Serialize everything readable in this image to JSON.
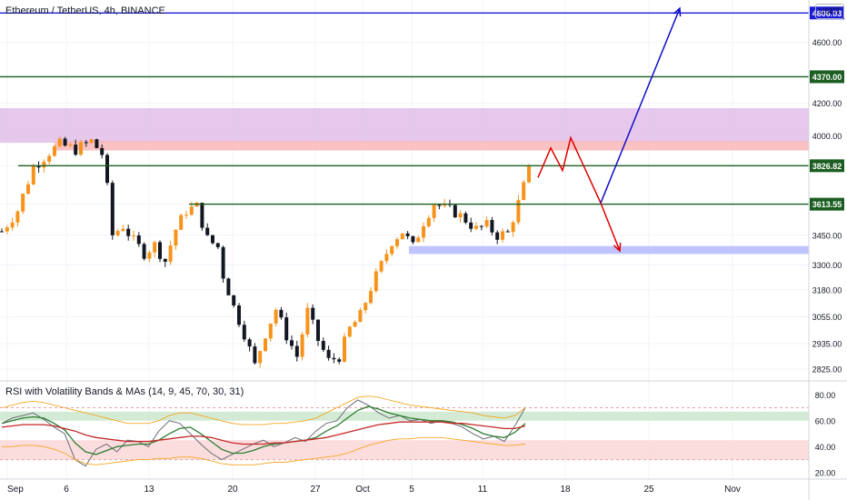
{
  "header": {
    "title": "Ethereum / TetherUS, 4h, BINANCE",
    "currency": "USDT"
  },
  "colors": {
    "up": "#f7931a",
    "down": "#131722",
    "green_line": "#1b5e20",
    "blue_line": "#1b1bd9",
    "purple_zone": "#e1bee7",
    "red_zone": "#f9b7b7",
    "blue_zone": "#b6b9ff",
    "projection_red": "#e00000",
    "projection_blue": "#1010c8"
  },
  "chart_data": [
    {
      "type": "candlestick",
      "symbol": "ETHUSDT",
      "interval": "4h",
      "exchange": "BINANCE",
      "y_axis": {
        "scale": "log",
        "range": [
          2780,
          4900
        ],
        "ticks": [
          4806.03,
          4600.0,
          4370.0,
          4200.0,
          4000.0,
          3826.82,
          3613.55,
          3450.0,
          3300.0,
          3180.0,
          3055.0,
          2935.0,
          2825.0
        ]
      },
      "x_axis": {
        "tick_labels": [
          "Sep",
          "6",
          "13",
          "20",
          "27",
          "Oct",
          "5",
          "11",
          "18",
          "25",
          "Nov"
        ]
      },
      "horizontal_levels": [
        {
          "price": 4806.03,
          "label": "4806.03",
          "color": "blue"
        },
        {
          "price": 4370.0,
          "label": "4370.00",
          "color": "green"
        },
        {
          "price": 3826.82,
          "label": "3826.82",
          "color": "green"
        },
        {
          "price": 3613.55,
          "label": "3613.55",
          "color": "green"
        }
      ],
      "zones": [
        {
          "name": "supply-purple",
          "low": 3960,
          "high": 4170
        },
        {
          "name": "supply-red",
          "low": 3915,
          "high": 3970
        },
        {
          "name": "demand-blue",
          "low": 3355,
          "high": 3395
        }
      ],
      "projections": [
        {
          "name": "bearish",
          "points": [
            [
              3760,
              0
            ],
            [
              3930,
              1
            ],
            [
              3800,
              2
            ],
            [
              3990,
              3
            ],
            [
              3620,
              4
            ],
            [
              3370,
              5
            ]
          ]
        },
        {
          "name": "bullish",
          "points": [
            [
              3620,
              0
            ],
            [
              4840,
              1
            ]
          ]
        }
      ],
      "swing_path": [
        [
          0,
          3470
        ],
        [
          3,
          3580
        ],
        [
          6,
          3820
        ],
        [
          9,
          3905
        ],
        [
          11,
          3950
        ],
        [
          14,
          3920
        ],
        [
          17,
          3970
        ],
        [
          19,
          3895
        ],
        [
          20,
          3700
        ],
        [
          21,
          3450
        ],
        [
          23,
          3500
        ],
        [
          25,
          3420
        ],
        [
          27,
          3360
        ],
        [
          29,
          3400
        ],
        [
          31,
          3320
        ],
        [
          33,
          3480
        ],
        [
          35,
          3580
        ],
        [
          37,
          3600
        ],
        [
          39,
          3430
        ],
        [
          41,
          3390
        ],
        [
          42,
          3250
        ],
        [
          44,
          3100
        ],
        [
          46,
          2980
        ],
        [
          48,
          2840
        ],
        [
          50,
          2980
        ],
        [
          52,
          3090
        ],
        [
          54,
          2970
        ],
        [
          56,
          2880
        ],
        [
          58,
          3080
        ],
        [
          60,
          2950
        ],
        [
          62,
          2860
        ],
        [
          64,
          2880
        ],
        [
          66,
          3000
        ],
        [
          68,
          3060
        ],
        [
          70,
          3190
        ],
        [
          72,
          3300
        ],
        [
          74,
          3420
        ],
        [
          76,
          3470
        ],
        [
          78,
          3390
        ],
        [
          80,
          3520
        ],
        [
          82,
          3620
        ],
        [
          84,
          3590
        ],
        [
          86,
          3570
        ],
        [
          88,
          3530
        ],
        [
          90,
          3480
        ],
        [
          92,
          3500
        ],
        [
          94,
          3450
        ],
        [
          96,
          3460
        ],
        [
          98,
          3620
        ],
        [
          100,
          3800
        ]
      ]
    },
    {
      "type": "line",
      "title": "RSI with Volatility Bands & MAs (14, 9, 45, 70, 30, 31)",
      "y_axis": {
        "range": [
          15,
          90
        ],
        "ticks": [
          80.0,
          60.0,
          40.0,
          20.0
        ]
      },
      "bands": [
        {
          "name": "upper-green",
          "low": 60,
          "high": 67
        },
        {
          "name": "lower-red",
          "low": 30,
          "high": 45
        }
      ],
      "dashed_levels": [
        70,
        30
      ],
      "series": [
        {
          "style": "rsi",
          "values": [
            58,
            62,
            64,
            66,
            61,
            55,
            50,
            30,
            25,
            38,
            42,
            36,
            45,
            44,
            40,
            52,
            60,
            58,
            50,
            42,
            35,
            30,
            34,
            38,
            42,
            45,
            40,
            43,
            47,
            44,
            52,
            58,
            60,
            70,
            76,
            72,
            66,
            62,
            64,
            60,
            61,
            58,
            60,
            58,
            55,
            50,
            46,
            48,
            44,
            56,
            70
          ]
        },
        {
          "style": "ma-fast",
          "values": [
            58,
            60,
            62,
            63,
            62,
            58,
            53,
            43,
            36,
            34,
            37,
            40,
            41,
            42,
            42,
            45,
            50,
            54,
            55,
            50,
            44,
            38,
            35,
            35,
            37,
            40,
            42,
            43,
            44,
            45,
            47,
            52,
            56,
            62,
            68,
            71,
            69,
            66,
            64,
            62,
            61,
            60,
            60,
            59,
            57,
            54,
            50,
            48,
            47,
            51,
            58
          ]
        },
        {
          "style": "ma-slow",
          "values": [
            55,
            56,
            57,
            57,
            57,
            56,
            54,
            52,
            49,
            47,
            46,
            45,
            44,
            44,
            44,
            45,
            46,
            47,
            48,
            48,
            47,
            45,
            43,
            42,
            42,
            42,
            43,
            43,
            44,
            45,
            46,
            47,
            49,
            51,
            53,
            55,
            57,
            58,
            59,
            59,
            59,
            59,
            59,
            58,
            58,
            57,
            56,
            55,
            54,
            54,
            56
          ]
        },
        {
          "style": "band-upper",
          "values": [
            70,
            72,
            74,
            75,
            74,
            72,
            70,
            68,
            66,
            64,
            62,
            60,
            58,
            58,
            58,
            60,
            64,
            66,
            66,
            64,
            62,
            60,
            58,
            57,
            57,
            57,
            58,
            58,
            59,
            60,
            62,
            66,
            70,
            74,
            78,
            79,
            78,
            76,
            74,
            72,
            71,
            70,
            69,
            68,
            67,
            66,
            64,
            63,
            62,
            64,
            70
          ]
        },
        {
          "style": "band-lower",
          "values": [
            40,
            40,
            41,
            41,
            40,
            38,
            35,
            30,
            27,
            26,
            27,
            28,
            29,
            30,
            30,
            31,
            31,
            32,
            32,
            31,
            29,
            27,
            26,
            26,
            26,
            27,
            28,
            28,
            29,
            30,
            31,
            32,
            33,
            35,
            38,
            41,
            43,
            45,
            46,
            46,
            47,
            47,
            47,
            46,
            45,
            44,
            43,
            42,
            41,
            41,
            42
          ]
        }
      ]
    }
  ]
}
